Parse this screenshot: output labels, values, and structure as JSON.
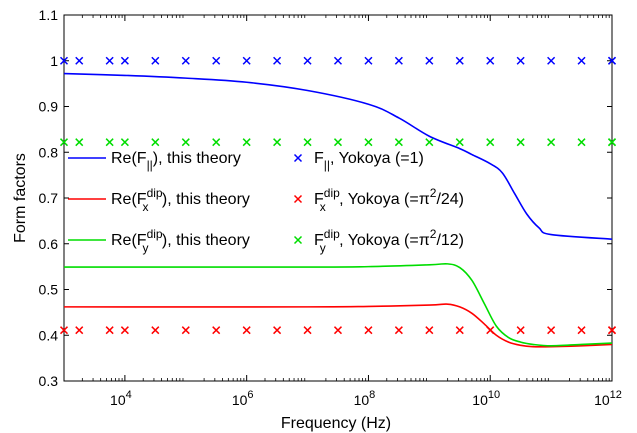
{
  "chart_data": {
    "type": "line",
    "title": "",
    "xlabel": "Frequency (Hz)",
    "ylabel": "Form factors",
    "xscale": "log",
    "xlim": [
      1000,
      1000000000000
    ],
    "ylim": [
      0.3,
      1.1
    ],
    "grid": false,
    "legend_position": "center-left",
    "x_ticks": [
      {
        "value": 10000,
        "label_base": "10",
        "label_exp": "4"
      },
      {
        "value": 1000000,
        "label_base": "10",
        "label_exp": "6"
      },
      {
        "value": 100000000,
        "label_base": "10",
        "label_exp": "8"
      },
      {
        "value": 10000000000,
        "label_base": "10",
        "label_exp": "10"
      },
      {
        "value": 1000000000000,
        "label_base": "10",
        "label_exp": "12"
      }
    ],
    "y_ticks": [
      {
        "value": 0.3,
        "label": "0.3"
      },
      {
        "value": 0.4,
        "label": "0.4"
      },
      {
        "value": 0.5,
        "label": "0.5"
      },
      {
        "value": 0.6,
        "label": "0.6"
      },
      {
        "value": 0.7,
        "label": "0.7"
      },
      {
        "value": 0.8,
        "label": "0.8"
      },
      {
        "value": 0.9,
        "label": "0.9"
      },
      {
        "value": 1.0,
        "label": "1"
      },
      {
        "value": 1.1,
        "label": "1.1"
      }
    ],
    "series": [
      {
        "name": "Re(F||), this theory",
        "legend": {
          "main": "Re(F",
          "sub": "||",
          "sup": "",
          "rest": "), this theory"
        },
        "style": "line",
        "color": "#0000ff",
        "x": [
          1000,
          10000,
          100000,
          1000000,
          10000000,
          100000000,
          316000000,
          1000000000,
          3160000000,
          5000000000,
          10000000000,
          15800000000,
          25100000000,
          39800000000,
          63100000000,
          100000000000,
          1000000000000
        ],
        "y": [
          0.972,
          0.968,
          0.962,
          0.953,
          0.935,
          0.905,
          0.875,
          0.835,
          0.808,
          0.795,
          0.775,
          0.755,
          0.71,
          0.665,
          0.635,
          0.62,
          0.61
        ]
      },
      {
        "name": "Re(F_x^dip), this theory",
        "legend": {
          "main": "Re(F",
          "sub": "x",
          "sup": "dip",
          "rest": "), this theory"
        },
        "style": "line",
        "color": "#ff0000",
        "x": [
          1000,
          10000000,
          100000000,
          1000000000,
          2000000000,
          3160000000,
          5000000000,
          7940000000,
          12600000000,
          20000000000,
          31600000000,
          50100000000,
          100000000000,
          316000000000,
          1000000000000
        ],
        "y": [
          0.462,
          0.462,
          0.463,
          0.466,
          0.468,
          0.462,
          0.448,
          0.425,
          0.4,
          0.385,
          0.378,
          0.375,
          0.375,
          0.377,
          0.38
        ]
      },
      {
        "name": "Re(F_y^dip), this theory",
        "legend": {
          "main": "Re(F",
          "sub": "y",
          "sup": "dip",
          "rest": "), this theory"
        },
        "style": "line",
        "color": "#00dd00",
        "x": [
          1000,
          10000000,
          100000000,
          1000000000,
          2000000000,
          3160000000,
          5000000000,
          7940000000,
          12600000000,
          20000000000,
          31600000000,
          50100000000,
          100000000000,
          316000000000,
          1000000000000
        ],
        "y": [
          0.549,
          0.549,
          0.55,
          0.554,
          0.556,
          0.548,
          0.52,
          0.47,
          0.42,
          0.395,
          0.385,
          0.38,
          0.377,
          0.38,
          0.383
        ]
      },
      {
        "name": "F||, Yokoya (=1)",
        "legend": {
          "main": "F",
          "sub": "||",
          "sup": "",
          "rest": ", Yokoya (=1)"
        },
        "style": "marker",
        "color": "#0000ff",
        "constant": 1.0
      },
      {
        "name": "F_x^dip, Yokoya (=π²/24)",
        "legend": {
          "main": "F",
          "sub": "x",
          "sup": "dip",
          "rest": ", Yokoya (=π",
          "rest_sup": "2",
          "rest_tail": "/24)"
        },
        "style": "marker",
        "color": "#ff0000",
        "constant": 0.411
      },
      {
        "name": "F_y^dip, Yokoya (=π²/12)",
        "legend": {
          "main": "F",
          "sub": "y",
          "sup": "dip",
          "rest": ", Yokoya (=π",
          "rest_sup": "2",
          "rest_tail": "/12)"
        },
        "style": "marker",
        "color": "#00dd00",
        "constant": 0.822
      }
    ],
    "marker_x": [
      1000,
      1780,
      5620,
      10000,
      31600,
      100000,
      316000,
      1000000,
      3160000,
      10000000,
      31600000,
      100000000,
      316000000,
      1000000000,
      3160000000,
      10000000000,
      31600000000,
      100000000000,
      316000000000,
      1000000000000,
      1000000000000
    ]
  }
}
